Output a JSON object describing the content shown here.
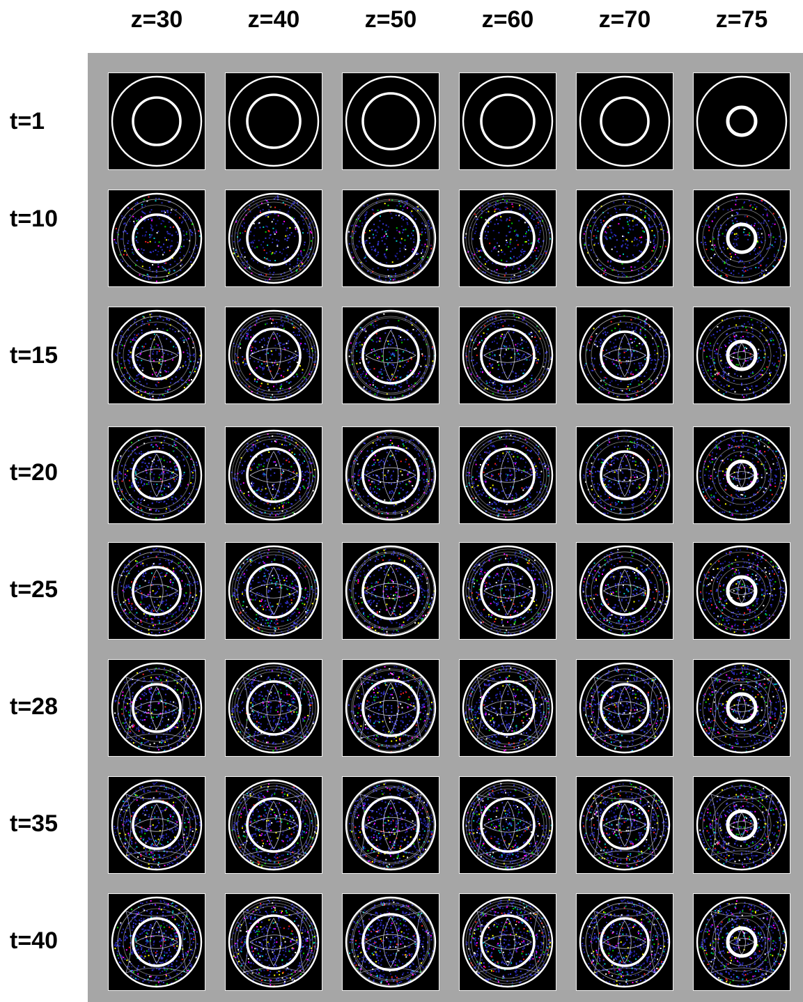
{
  "columns": [
    "z=30",
    "z=40",
    "z=50",
    "z=60",
    "z=70",
    "z=75"
  ],
  "rows": [
    "t=1",
    "t=10",
    "t=15",
    "t=20",
    "t=25",
    "t=28",
    "t=35",
    "t=40"
  ],
  "colors": {
    "background": "#ffffff",
    "panel": "#a6a6a6",
    "cell_background": "#000000",
    "ring": "#ffffff",
    "noise": [
      "#1a1a8c",
      "#2828b4",
      "#3a3adc",
      "#00c8c8",
      "#00d000",
      "#ff2020",
      "#ffff00",
      "#ff00ff",
      "#ffffff"
    ]
  }
}
